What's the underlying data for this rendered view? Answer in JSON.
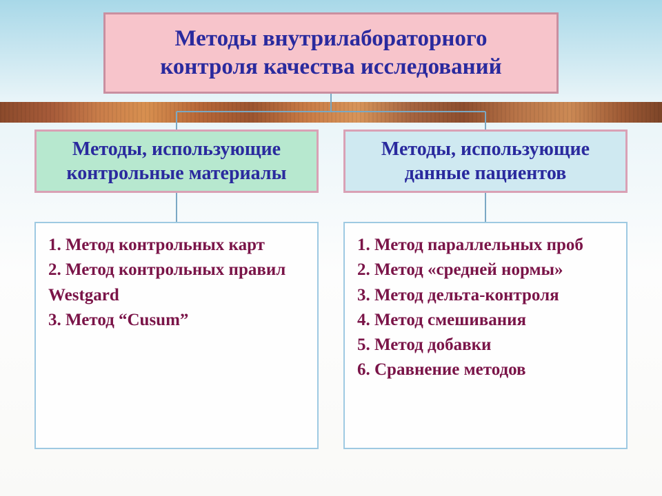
{
  "diagram": {
    "type": "flowchart",
    "background_gradient": [
      "#a8d8e8",
      "#e8f4f8",
      "#fdfdfd",
      "#f9f9f7"
    ],
    "connector_color": "#7aa8c4",
    "connector_width": 2,
    "header": {
      "text_line1": "Методы внутрилабораторного",
      "text_line2": "контроля качества исследований",
      "fill": "#f7c4cb",
      "border_color": "#c98fa0",
      "border_width": 3,
      "text_color": "#2a2a9e",
      "font_size": 33
    },
    "branches": [
      {
        "title_line1": "Методы, использующие",
        "title_line2": "контрольные материалы",
        "fill": "#b7e8cf",
        "border_color": "#d9a1b5",
        "border_width": 3,
        "text_color": "#2a2a9e",
        "font_size": 28,
        "list": {
          "items": [
            "Метод контрольных карт",
            "Метод контрольных правил Westgard",
            "Метод “Cusum”"
          ],
          "fill": "#fefefe",
          "border_color": "#9ec9e2",
          "border_width": 2,
          "text_color": "#7a1448",
          "font_size": 25
        }
      },
      {
        "title_line1": "Методы, использующие",
        "title_line2": "данные пациентов",
        "fill": "#cfe9f1",
        "border_color": "#d9a1b5",
        "border_width": 3,
        "text_color": "#2a2a9e",
        "font_size": 28,
        "list": {
          "items": [
            "Метод параллельных проб",
            "Метод «средней нормы»",
            "Метод дельта-контроля",
            "Метод смешивания",
            "Метод добавки",
            "Сравнение методов"
          ],
          "fill": "#fefefe",
          "border_color": "#9ec9e2",
          "border_width": 2,
          "text_color": "#7a1448",
          "font_size": 25
        }
      }
    ]
  }
}
